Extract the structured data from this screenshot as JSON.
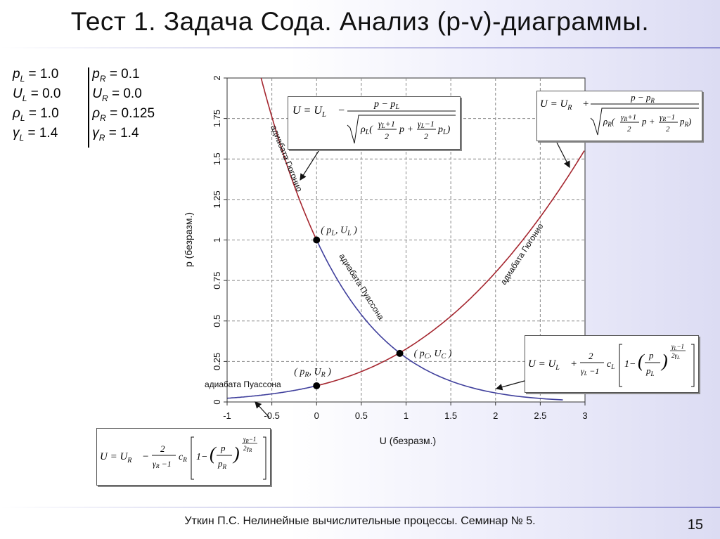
{
  "slide": {
    "title": "Тест 1. Задача Сода. Анализ (p-v)-диаграммы.",
    "footer": "Уткин П.С. Нелинейные вычислительные процессы. Семинар № 5.",
    "page_number": "15"
  },
  "params": {
    "left": [
      {
        "sym": "p",
        "sub": "L",
        "val": "= 1.0"
      },
      {
        "sym": "U",
        "sub": "L",
        "val": "= 0.0"
      },
      {
        "sym": "ρ",
        "sub": "L",
        "val": "= 1.0"
      },
      {
        "sym": "γ",
        "sub": "L",
        "val": "= 1.4"
      }
    ],
    "right": [
      {
        "sym": "p",
        "sub": "R",
        "val": "= 0.1"
      },
      {
        "sym": "U",
        "sub": "R",
        "val": "= 0.0"
      },
      {
        "sym": "ρ",
        "sub": "R",
        "val": "= 0.125"
      },
      {
        "sym": "γ",
        "sub": "R",
        "val": "= 1.4"
      }
    ]
  },
  "chart_data": {
    "type": "line",
    "xlabel": "U (безразм.)",
    "ylabel": "p (безразм.)",
    "xlim": [
      -1,
      3
    ],
    "ylim": [
      0,
      2
    ],
    "xticks": [
      "-1",
      "-0.5",
      "0",
      "0.5",
      "1",
      "1.5",
      "2",
      "2.5",
      "3"
    ],
    "yticks": [
      "0",
      "0.25",
      "0.5",
      "0.75",
      "1",
      "1.25",
      "1.5",
      "1.75",
      "2"
    ],
    "grid": true,
    "gamma": 1.4,
    "left_state": {
      "p": 1.0,
      "U": 0.0,
      "rho": 1.0
    },
    "right_state": {
      "p": 0.1,
      "U": 0.0,
      "rho": 0.125
    },
    "series": [
      {
        "id": "left-hugoniot",
        "name": "адиабата Гюгонио",
        "color": "#a5262f",
        "p_range": [
          1.0,
          2.0
        ],
        "family": "hugoniot",
        "side": "L"
      },
      {
        "id": "left-poisson",
        "name": "адиабата Пуассона",
        "color": "#3f3f9c",
        "p_range": [
          0.0,
          1.0
        ],
        "family": "poisson",
        "side": "L"
      },
      {
        "id": "right-hugoniot",
        "name": "адиабата Гюгонио",
        "color": "#a5262f",
        "p_range": [
          0.1,
          1.56
        ],
        "family": "hugoniot",
        "side": "R"
      },
      {
        "id": "right-poisson",
        "name": "адиабата Пуассона",
        "color": "#3f3f9c",
        "p_range": [
          0.004,
          0.1
        ],
        "family": "poisson",
        "side": "R"
      }
    ],
    "points": [
      {
        "id": "pL",
        "x": 0.0,
        "y": 1.0,
        "label_base1": "p",
        "label_sub1": "L",
        "label_base2": "U",
        "label_sub2": "L"
      },
      {
        "id": "pR",
        "x": 0.0,
        "y": 0.1,
        "label_base1": "p",
        "label_sub1": "R",
        "label_base2": "U",
        "label_sub2": "R"
      },
      {
        "id": "pC",
        "x": 0.93,
        "y": 0.3,
        "label_base1": "p",
        "label_sub1": "C",
        "label_base2": "U",
        "label_sub2": "C"
      }
    ],
    "curve_labels": [
      {
        "text": "адиабата Гюгонио"
      },
      {
        "text": "адиабата Пуассона"
      },
      {
        "text": "адиабата Гюгонио"
      },
      {
        "text": "адиабата Пуассона"
      }
    ]
  },
  "formulas": {
    "hugoniot_left": {
      "lhs": "U = U",
      "lhs_sub": "L",
      "op": "−",
      "num": "p − p",
      "num_sub": "L",
      "den_rho": "ρ",
      "den_rho_sub": "L",
      "g_sub": "L",
      "p_sub": "L"
    },
    "hugoniot_right": {
      "lhs": "U = U",
      "lhs_sub": "R",
      "op": "+",
      "num": "p − p",
      "num_sub": "R",
      "den_rho": "ρ",
      "den_rho_sub": "R",
      "g_sub": "R",
      "p_sub": "R"
    },
    "poisson_left": {
      "lhs": "U = U",
      "lhs_sub": "L",
      "op": "+",
      "c_sub": "L",
      "g_sub": "L",
      "p_sub": "L"
    },
    "poisson_right": {
      "lhs": "U = U",
      "lhs_sub": "R",
      "op": "−",
      "c_sub": "R",
      "g_sub": "R",
      "p_sub": "R"
    }
  }
}
